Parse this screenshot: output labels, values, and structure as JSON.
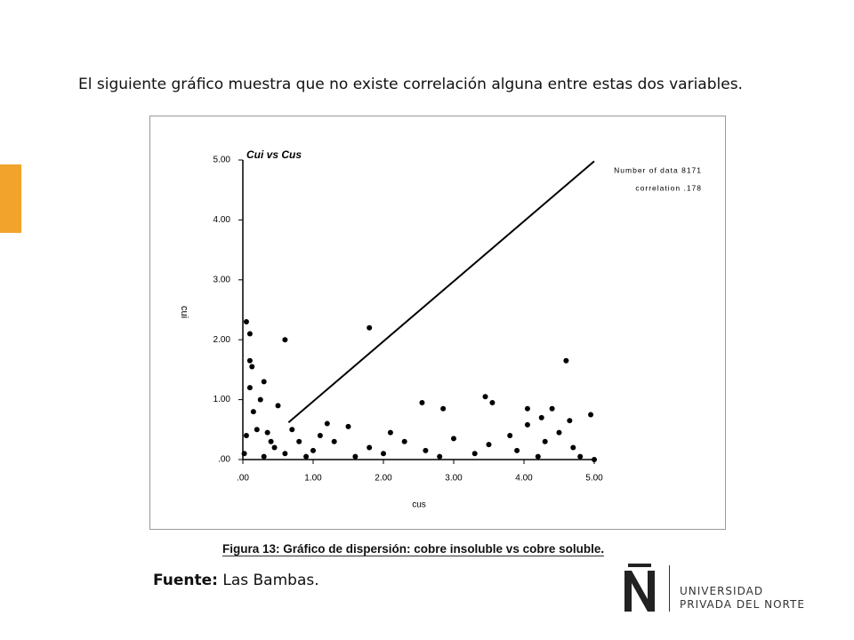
{
  "slide": {
    "text": "El siguiente gráfico muestra que no existe correlación alguna entre estas dos variables.",
    "caption": "Figura 13: Gráfico de dispersión: cobre insoluble vs cobre soluble.",
    "source_label": "Fuente:",
    "source_value": "Las Bambas.",
    "logo_line1": "Universidad",
    "logo_line2": "Privada del Norte"
  },
  "chart_data": {
    "type": "scatter",
    "title": "Cui vs Cus",
    "x_label": "cus",
    "y_label": "cui",
    "annotations": [
      "Number of data 8171",
      "correlation .178"
    ],
    "xlim": [
      0,
      5
    ],
    "ylim": [
      0,
      5
    ],
    "xticks": [
      {
        "value": 0,
        "label": ".00"
      },
      {
        "value": 1,
        "label": "1.00"
      },
      {
        "value": 2,
        "label": "2.00"
      },
      {
        "value": 3,
        "label": "3.00"
      },
      {
        "value": 4,
        "label": "4.00"
      },
      {
        "value": 5,
        "label": "5.00"
      }
    ],
    "yticks": [
      {
        "value": 0,
        "label": ".00"
      },
      {
        "value": 1,
        "label": "1.00"
      },
      {
        "value": 2,
        "label": "2.00"
      },
      {
        "value": 3,
        "label": "3.00"
      },
      {
        "value": 4,
        "label": "4.00"
      },
      {
        "value": 5,
        "label": "5.00"
      }
    ],
    "series": [
      {
        "type": "scatter",
        "color": "#000000",
        "x": [
          0.05,
          0.1,
          0.1,
          0.13,
          0.3,
          0.1,
          0.6,
          1.8,
          4.6,
          3.45,
          2.55,
          2.85,
          3.55,
          4.05,
          4.4,
          4.25,
          4.65,
          4.95,
          4.05,
          1.2,
          1.5,
          2.1,
          3.0,
          3.8,
          4.3,
          4.7,
          5.0,
          4.2,
          3.3,
          2.6,
          1.8,
          1.0,
          0.6,
          0.4,
          0.3,
          0.2,
          0.15,
          0.05,
          0.02,
          0.5,
          0.25,
          0.35,
          0.8,
          0.9,
          1.3,
          1.6,
          2.0,
          2.3,
          2.8,
          3.5,
          3.9,
          4.5,
          4.8,
          0.7,
          1.1,
          0.45
        ],
        "values": [
          2.3,
          2.1,
          1.65,
          1.55,
          1.3,
          1.2,
          2.0,
          2.2,
          1.65,
          1.05,
          0.95,
          0.85,
          0.95,
          0.85,
          0.85,
          0.7,
          0.65,
          0.75,
          0.58,
          0.6,
          0.55,
          0.45,
          0.35,
          0.4,
          0.3,
          0.2,
          0.0,
          0.05,
          0.1,
          0.15,
          0.2,
          0.15,
          0.1,
          0.3,
          0.05,
          0.5,
          0.8,
          0.4,
          0.1,
          0.9,
          1.0,
          0.45,
          0.3,
          0.05,
          0.3,
          0.05,
          0.1,
          0.3,
          0.05,
          0.25,
          0.15,
          0.45,
          0.05,
          0.5,
          0.4,
          0.2
        ]
      },
      {
        "type": "line",
        "color": "#000000",
        "x": [
          0.65,
          5.0
        ],
        "values": [
          0.62,
          4.98
        ]
      }
    ]
  }
}
